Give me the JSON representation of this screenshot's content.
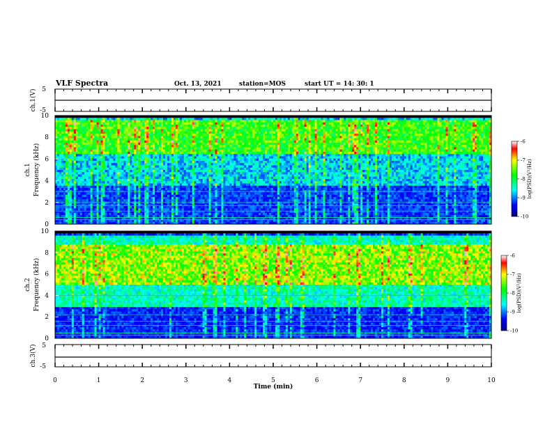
{
  "header": {
    "title": "VLF Spectra",
    "date": "Oct. 13, 2021",
    "station": "station=MOS",
    "start_ut": "start  UT =   14: 30: 1"
  },
  "chart_data": [
    {
      "type": "line",
      "ylabel": "ch.1(V)",
      "ylim": [
        -5,
        5
      ],
      "yticks": [
        "5",
        "-5"
      ],
      "xlim": [
        0,
        10
      ],
      "baseline": 0
    },
    {
      "type": "heatmap",
      "ylabel": "ch.1",
      "ylabel2": "Frequency (kHz)",
      "ylim": [
        0,
        10
      ],
      "yticks": [
        "0",
        "2",
        "4",
        "6",
        "8",
        "10"
      ],
      "xlim": [
        0,
        10
      ],
      "colorbar": {
        "label": "log(PSD)(V²/Hz)",
        "ticks": [
          "-6",
          "-7",
          "-8",
          "-9",
          "-10"
        ],
        "range": [
          -10,
          -6
        ]
      }
    },
    {
      "type": "heatmap",
      "ylabel": "ch.2",
      "ylabel2": "Frequency (kHz)",
      "ylim": [
        0,
        10
      ],
      "yticks": [
        "0",
        "2",
        "4",
        "6",
        "8",
        "10"
      ],
      "xlim": [
        0,
        10
      ],
      "colorbar": {
        "label": "log(PSD)(V²/Hz)",
        "ticks": [
          "-6",
          "-7",
          "-8",
          "-9",
          "-10"
        ],
        "range": [
          -10,
          -6
        ]
      }
    },
    {
      "type": "line",
      "ylabel": "ch.3(V)",
      "ylim": [
        -5,
        5
      ],
      "yticks": [
        "5",
        "-5"
      ],
      "xlim": [
        0,
        10
      ],
      "xlabel": "Time  (min)",
      "xticks": [
        "0",
        "1",
        "2",
        "3",
        "4",
        "5",
        "6",
        "7",
        "8",
        "9",
        "10"
      ],
      "baseline": -0.5
    }
  ],
  "colors": {
    "low": "#000080",
    "mid": "#00ff00",
    "high": "#ff0000",
    "background": "#000000"
  }
}
